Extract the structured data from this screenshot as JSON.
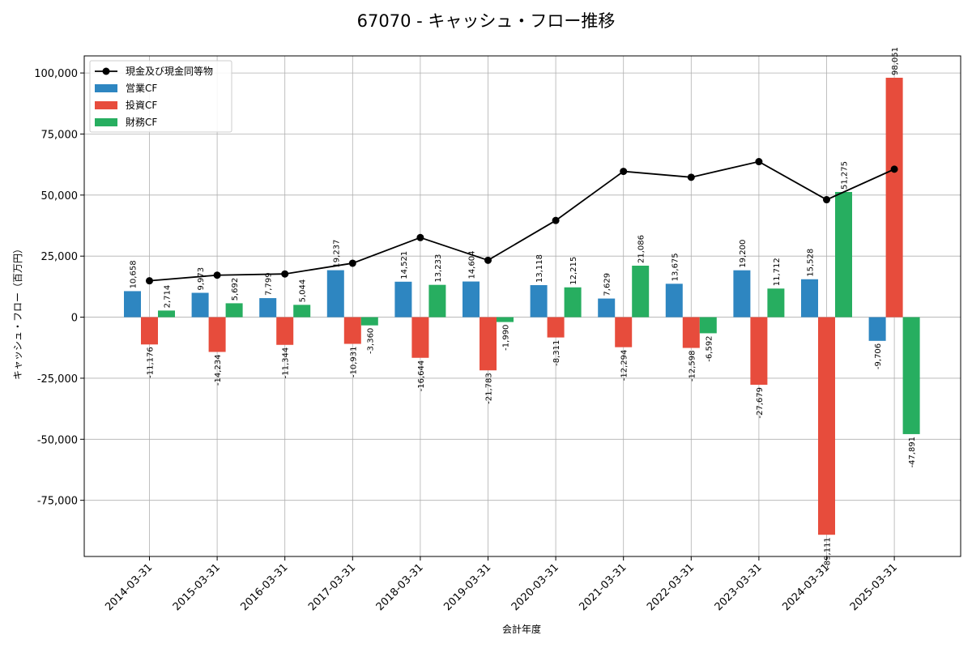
{
  "chart_data": {
    "type": "bar",
    "title": "67070 - キャッシュ・フロー推移",
    "xlabel": "会計年度",
    "ylabel": "キャッシュ・フロー（百万円）",
    "categories": [
      "2014-03-31",
      "2015-03-31",
      "2016-03-31",
      "2017-03-31",
      "2018-03-31",
      "2019-03-31",
      "2020-03-31",
      "2021-03-31",
      "2022-03-31",
      "2023-03-31",
      "2024-03-31",
      "2025-03-31"
    ],
    "ylim": [
      -98000,
      107000
    ],
    "yticks": [
      -75000,
      -50000,
      -25000,
      0,
      25000,
      50000,
      75000,
      100000
    ],
    "ytick_labels": [
      "-75,000",
      "-50,000",
      "-25,000",
      "0",
      "25,000",
      "50,000",
      "75,000",
      "100,000"
    ],
    "grid": true,
    "legend_position": "top-left",
    "series": [
      {
        "name": "営業CF",
        "kind": "bar",
        "color": "#2e86c1",
        "values": [
          10658,
          9973,
          7799,
          19237,
          14521,
          14604,
          13118,
          7629,
          13675,
          19200,
          15528,
          -9706
        ],
        "labels": [
          "10,658",
          "9,973",
          "7,799",
          "19,237",
          "14,521",
          "14,604",
          "13,118",
          "7,629",
          "13,675",
          "19,200",
          "15,528",
          "-9,706"
        ]
      },
      {
        "name": "投資CF",
        "kind": "bar",
        "color": "#e74c3c",
        "values": [
          -11176,
          -14234,
          -11344,
          -10931,
          -16644,
          -21783,
          -8311,
          -12294,
          -12598,
          -27679,
          -89111,
          98051
        ],
        "labels": [
          "-11,176",
          "-14,234",
          "-11,344",
          "-10,931",
          "-16,644",
          "-21,783",
          "-8,311",
          "-12,294",
          "-12,598",
          "-27,679",
          "-89,111",
          "98,051"
        ]
      },
      {
        "name": "財務CF",
        "kind": "bar",
        "color": "#27ae60",
        "values": [
          2714,
          5692,
          5044,
          -3360,
          13233,
          -1990,
          12215,
          21086,
          -6592,
          11712,
          51275,
          -47891
        ],
        "labels": [
          "2,714",
          "5,692",
          "5,044",
          "-3,360",
          "13,233",
          "-1,990",
          "12,215",
          "21,086",
          "-6,592",
          "11,712",
          "51,275",
          "-47,891"
        ]
      },
      {
        "name": "現金及び現金同等物",
        "kind": "line",
        "color": "#000000",
        "values": [
          14900,
          17200,
          17700,
          22100,
          32600,
          23300,
          39600,
          59700,
          57300,
          63700,
          48100,
          60600
        ]
      }
    ]
  }
}
